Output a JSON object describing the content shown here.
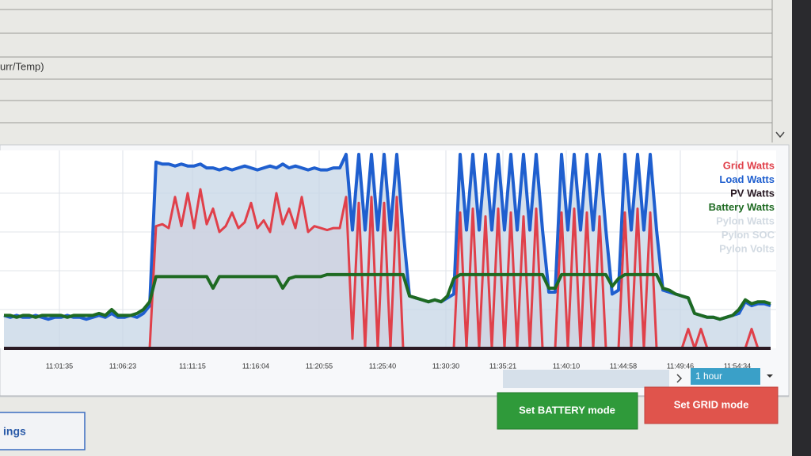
{
  "header": {
    "form_label": "urr/Temp)"
  },
  "chart_data": {
    "type": "line",
    "categories": [
      null,
      null,
      null,
      null,
      null,
      null,
      null,
      null,
      null,
      null,
      "11:01:35",
      null,
      null,
      null,
      null,
      null,
      null,
      null,
      null,
      null,
      "11:06:23",
      null,
      null,
      null,
      null,
      null,
      null,
      null,
      null,
      null,
      null,
      "11:11:15",
      null,
      null,
      null,
      null,
      null,
      null,
      null,
      null,
      null,
      "11:16:04",
      null,
      null,
      null,
      null,
      null,
      null,
      null,
      null,
      null,
      "11:20:55",
      null,
      null,
      null,
      null,
      null,
      null,
      null,
      null,
      null,
      "11:25:40",
      null,
      null,
      null,
      null,
      null,
      null,
      null,
      null,
      null,
      "11:30:30",
      null,
      null,
      null,
      null,
      null,
      null,
      null,
      null,
      "11:35:21",
      null,
      null,
      null,
      null,
      null,
      null,
      null,
      null,
      null,
      "11:40:10",
      null,
      null,
      null,
      null,
      null,
      null,
      null,
      null,
      "11:44:58",
      null,
      null,
      null,
      null,
      null,
      null,
      null,
      null,
      "11:49:46",
      null,
      null,
      null,
      null,
      null,
      null,
      null,
      null,
      "11:54:34",
      null,
      null,
      null,
      null
    ],
    "ylim": [
      0,
      100
    ],
    "grid": true,
    "legend": "top-right",
    "series": [
      {
        "name": "Grid Watts",
        "color": "#e0404a",
        "fill": "#e8c4d0",
        "values": [
          0,
          0,
          0,
          0,
          0,
          0,
          0,
          0,
          0,
          0,
          0,
          0,
          0,
          0,
          0,
          0,
          0,
          0,
          0,
          0,
          0,
          0,
          0,
          0,
          63,
          64,
          62,
          78,
          63,
          80,
          62,
          82,
          64,
          72,
          60,
          63,
          70,
          62,
          65,
          75,
          62,
          66,
          60,
          80,
          64,
          72,
          62,
          78,
          60,
          63,
          62,
          61,
          62,
          62,
          78,
          5,
          75,
          0,
          78,
          0,
          75,
          0,
          78,
          0,
          0,
          0,
          0,
          0,
          0,
          0,
          0,
          0,
          70,
          0,
          72,
          0,
          68,
          0,
          72,
          0,
          70,
          0,
          68,
          0,
          72,
          0,
          0,
          0,
          70,
          0,
          72,
          0,
          70,
          0,
          68,
          0,
          0,
          0,
          70,
          0,
          72,
          0,
          70,
          0,
          0,
          0,
          0,
          0,
          10,
          0,
          10,
          0,
          0,
          0,
          0,
          0,
          0,
          0,
          10,
          0,
          0,
          0
        ]
      },
      {
        "name": "Load Watts",
        "color": "#1f5fcf",
        "fill": "#c6d6e6",
        "values": [
          17,
          16,
          17,
          16,
          16,
          17,
          16,
          15,
          16,
          16,
          17,
          16,
          16,
          15,
          16,
          17,
          16,
          18,
          16,
          16,
          17,
          16,
          18,
          22,
          96,
          95,
          95,
          94,
          95,
          94,
          94,
          95,
          93,
          93,
          92,
          93,
          92,
          93,
          94,
          93,
          92,
          93,
          94,
          93,
          95,
          93,
          94,
          93,
          92,
          93,
          92,
          92,
          93,
          93,
          100,
          61,
          100,
          61,
          100,
          61,
          100,
          61,
          100,
          61,
          27,
          26,
          25,
          24,
          25,
          24,
          26,
          28,
          100,
          61,
          100,
          61,
          100,
          61,
          100,
          61,
          100,
          61,
          100,
          61,
          100,
          61,
          29,
          29,
          100,
          61,
          100,
          61,
          100,
          61,
          100,
          61,
          28,
          30,
          100,
          61,
          100,
          61,
          100,
          61,
          30,
          29,
          28,
          27,
          26,
          18,
          17,
          16,
          16,
          15,
          16,
          17,
          18,
          24,
          22,
          23,
          23,
          22
        ]
      },
      {
        "name": "PV Watts",
        "color": "#2a1a24",
        "values": [
          0,
          0,
          0,
          0,
          0,
          0,
          0,
          0,
          0,
          0,
          0,
          0,
          0,
          0,
          0,
          0,
          0,
          0,
          0,
          0,
          0,
          0,
          0,
          0,
          0,
          0,
          0,
          0,
          0,
          0,
          0,
          0,
          0,
          0,
          0,
          0,
          0,
          0,
          0,
          0,
          0,
          0,
          0,
          0,
          0,
          0,
          0,
          0,
          0,
          0,
          0,
          0,
          0,
          0,
          0,
          0,
          0,
          0,
          0,
          0,
          0,
          0,
          0,
          0,
          0,
          0,
          0,
          0,
          0,
          0,
          0,
          0,
          0,
          0,
          0,
          0,
          0,
          0,
          0,
          0,
          0,
          0,
          0,
          0,
          0,
          0,
          0,
          0,
          0,
          0,
          0,
          0,
          0,
          0,
          0,
          0,
          0,
          0,
          0,
          0,
          0,
          0,
          0,
          0,
          0,
          0,
          0,
          0,
          0,
          0,
          0,
          0,
          0,
          0,
          0,
          0,
          0,
          0,
          0,
          0,
          0,
          0
        ]
      },
      {
        "name": "Battery Watts",
        "color": "#1e6a22",
        "values": [
          17,
          17,
          16,
          17,
          17,
          16,
          17,
          17,
          17,
          17,
          16,
          17,
          17,
          17,
          17,
          18,
          17,
          20,
          17,
          17,
          17,
          18,
          20,
          24,
          37,
          37,
          37,
          37,
          37,
          37,
          37,
          37,
          37,
          31,
          37,
          37,
          37,
          37,
          37,
          37,
          37,
          37,
          37,
          37,
          31,
          36,
          37,
          37,
          37,
          37,
          37,
          38,
          38,
          38,
          38,
          38,
          38,
          38,
          38,
          38,
          38,
          38,
          38,
          38,
          27,
          26,
          25,
          24,
          25,
          24,
          27,
          36,
          38,
          38,
          38,
          38,
          38,
          38,
          38,
          38,
          38,
          38,
          38,
          38,
          38,
          38,
          31,
          31,
          38,
          38,
          38,
          38,
          38,
          38,
          38,
          38,
          32,
          36,
          38,
          38,
          38,
          38,
          38,
          38,
          31,
          30,
          28,
          27,
          26,
          18,
          17,
          16,
          16,
          15,
          16,
          17,
          20,
          25,
          23,
          24,
          24,
          23
        ]
      }
    ],
    "hidden_series": [
      {
        "name": "Pylon Watts",
        "color": "#d2dae2"
      },
      {
        "name": "Pylon SOC",
        "color": "#d2dae2"
      },
      {
        "name": "Pylon Volts",
        "color": "#d2dae2"
      }
    ]
  },
  "controls": {
    "range": "1 hour",
    "buttons": [
      "Set BATTERY mode",
      "Set GRID mode"
    ],
    "partial_button": "ings"
  }
}
